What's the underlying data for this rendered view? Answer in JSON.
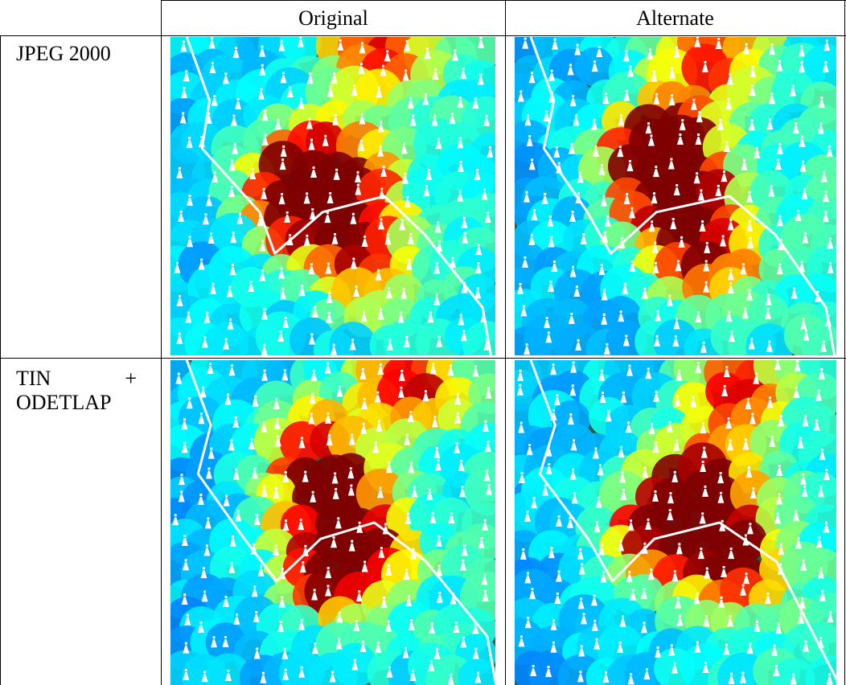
{
  "header": {
    "columns": [
      "Original",
      "Alternate"
    ]
  },
  "rows": [
    {
      "label": "JPEG 2000"
    },
    {
      "label": "TIN + ODETLAP"
    }
  ]
}
